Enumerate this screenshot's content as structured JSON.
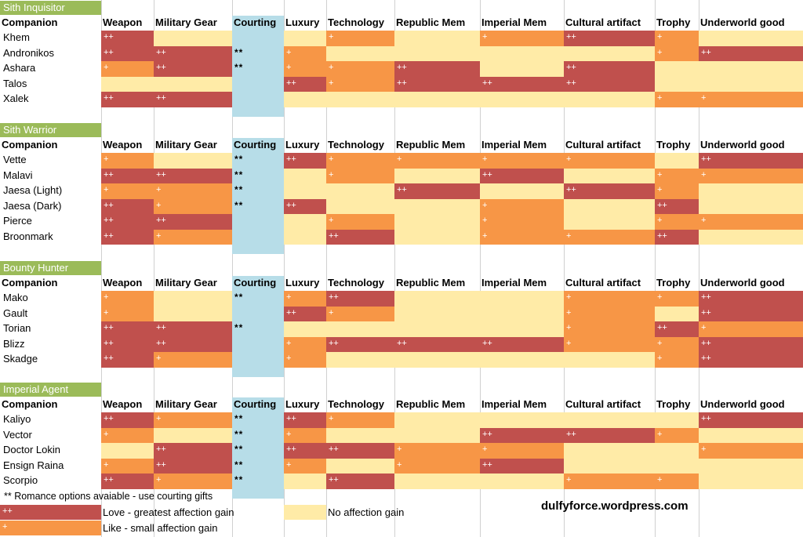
{
  "colors": {
    "love": "#c0504d",
    "like": "#f79646",
    "none": "#ffeba7",
    "courting": "#b7dde8",
    "header_green": "#9bbb59"
  },
  "columns": [
    "Companion",
    "Weapon",
    "Military Gear",
    "Courting",
    "Luxury",
    "Technology",
    "Republic Mem",
    "Imperial Mem",
    "Cultural artifact",
    "Trophy",
    "Underworld good"
  ],
  "sections": [
    {
      "title": "Sith Inquisitor",
      "rows": [
        {
          "name": "Khem",
          "weapon": "++",
          "military": "",
          "courting": "",
          "luxury": "",
          "technology": "+",
          "republic": "",
          "imperial": "+",
          "cultural": "++",
          "trophy": "+",
          "underworld": ""
        },
        {
          "name": "Andronikos",
          "weapon": "++",
          "military": "++",
          "courting": "**",
          "luxury": "+",
          "technology": "",
          "republic": "",
          "imperial": "",
          "cultural": "",
          "trophy": "+",
          "underworld": "++"
        },
        {
          "name": "Ashara",
          "weapon": "+",
          "military": "++",
          "courting": "**",
          "luxury": "+",
          "technology": "+",
          "republic": "++",
          "imperial": "",
          "cultural": "++",
          "trophy": "",
          "underworld": ""
        },
        {
          "name": "Talos",
          "weapon": "",
          "military": "",
          "courting": "",
          "luxury": "++",
          "technology": "+",
          "republic": "++",
          "imperial": "++",
          "cultural": "++",
          "trophy": "",
          "underworld": ""
        },
        {
          "name": "Xalek",
          "weapon": "++",
          "military": "++",
          "courting": "",
          "luxury": "",
          "technology": "",
          "republic": "",
          "imperial": "",
          "cultural": "",
          "trophy": "+",
          "underworld": "+"
        }
      ]
    },
    {
      "title": "Sith Warrior",
      "rows": [
        {
          "name": "Vette",
          "weapon": "+",
          "military": "",
          "courting": "**",
          "luxury": "++",
          "technology": "+",
          "republic": "+",
          "imperial": "+",
          "cultural": "+",
          "trophy": "",
          "underworld": "++"
        },
        {
          "name": "Malavi",
          "weapon": "++",
          "military": "++",
          "courting": "**",
          "luxury": "",
          "technology": "+",
          "republic": "",
          "imperial": "++",
          "cultural": "",
          "trophy": "+",
          "underworld": "+"
        },
        {
          "name": "Jaesa (Light)",
          "weapon": "+",
          "military": "+",
          "courting": "**",
          "luxury": "",
          "technology": "",
          "republic": "++",
          "imperial": "",
          "cultural": "++",
          "trophy": "+",
          "underworld": ""
        },
        {
          "name": "Jaesa (Dark)",
          "weapon": "++",
          "military": "+",
          "courting": "**",
          "luxury": "++",
          "technology": "",
          "republic": "",
          "imperial": "+",
          "cultural": "",
          "trophy": "++",
          "underworld": ""
        },
        {
          "name": "Pierce",
          "weapon": "++",
          "military": "++",
          "courting": "",
          "luxury": "",
          "technology": "+",
          "republic": "",
          "imperial": "+",
          "cultural": "",
          "trophy": "+",
          "underworld": "+"
        },
        {
          "name": "Broonmark",
          "weapon": "++",
          "military": "+",
          "courting": "",
          "luxury": "",
          "technology": "++",
          "republic": "",
          "imperial": "+",
          "cultural": "+",
          "trophy": "++",
          "underworld": ""
        }
      ]
    },
    {
      "title": "Bounty Hunter",
      "rows": [
        {
          "name": "Mako",
          "weapon": "+",
          "military": "",
          "courting": "**",
          "luxury": "+",
          "technology": "++",
          "republic": "",
          "imperial": "",
          "cultural": "+",
          "trophy": "+",
          "underworld": "++"
        },
        {
          "name": "Gault",
          "weapon": "+",
          "military": "",
          "courting": "",
          "luxury": "++",
          "technology": "+",
          "republic": "",
          "imperial": "",
          "cultural": "+",
          "trophy": "",
          "underworld": "++"
        },
        {
          "name": "Torian",
          "weapon": "++",
          "military": "++",
          "courting": "**",
          "luxury": "",
          "technology": "",
          "republic": "",
          "imperial": "",
          "cultural": "+",
          "trophy": "++",
          "underworld": "+"
        },
        {
          "name": "Blizz",
          "weapon": "++",
          "military": "++",
          "courting": "",
          "luxury": "+",
          "technology": "++",
          "republic": "++",
          "imperial": "++",
          "cultural": "+",
          "trophy": "+",
          "underworld": "++"
        },
        {
          "name": "Skadge",
          "weapon": "++",
          "military": "+",
          "courting": "",
          "luxury": "+",
          "technology": "",
          "republic": "",
          "imperial": "",
          "cultural": "",
          "trophy": "+",
          "underworld": "++"
        }
      ]
    },
    {
      "title": "Imperial Agent",
      "rows": [
        {
          "name": "Kaliyo",
          "weapon": "++",
          "military": "+",
          "courting": "**",
          "luxury": "++",
          "technology": "+",
          "republic": "",
          "imperial": "",
          "cultural": "",
          "trophy": "",
          "underworld": "++"
        },
        {
          "name": "Vector",
          "weapon": "+",
          "military": "",
          "courting": "**",
          "luxury": "+",
          "technology": "",
          "republic": "",
          "imperial": "++",
          "cultural": "++",
          "trophy": "+",
          "underworld": ""
        },
        {
          "name": "Doctor Lokin",
          "weapon": "",
          "military": "++",
          "courting": "**",
          "luxury": "++",
          "technology": "++",
          "republic": "+",
          "imperial": "+",
          "cultural": "",
          "trophy": "",
          "underworld": "+"
        },
        {
          "name": "Ensign Raina",
          "weapon": "+",
          "military": "++",
          "courting": "**",
          "luxury": "+",
          "technology": "",
          "republic": "+",
          "imperial": "++",
          "cultural": "",
          "trophy": "",
          "underworld": ""
        },
        {
          "name": "Scorpio",
          "weapon": "++",
          "military": "+",
          "courting": "**",
          "luxury": "",
          "technology": "++",
          "republic": "",
          "imperial": "",
          "cultural": "+",
          "trophy": "+",
          "underworld": ""
        }
      ]
    }
  ],
  "footer": {
    "note": "** Romance options avaiable - use courting gifts",
    "love_symbol": "++",
    "love_text": "Love - greatest affection gain",
    "like_symbol": "+",
    "like_text": "Like - small affection gain",
    "none_text": "No affection gain",
    "site": "dulfyforce.wordpress.com"
  }
}
